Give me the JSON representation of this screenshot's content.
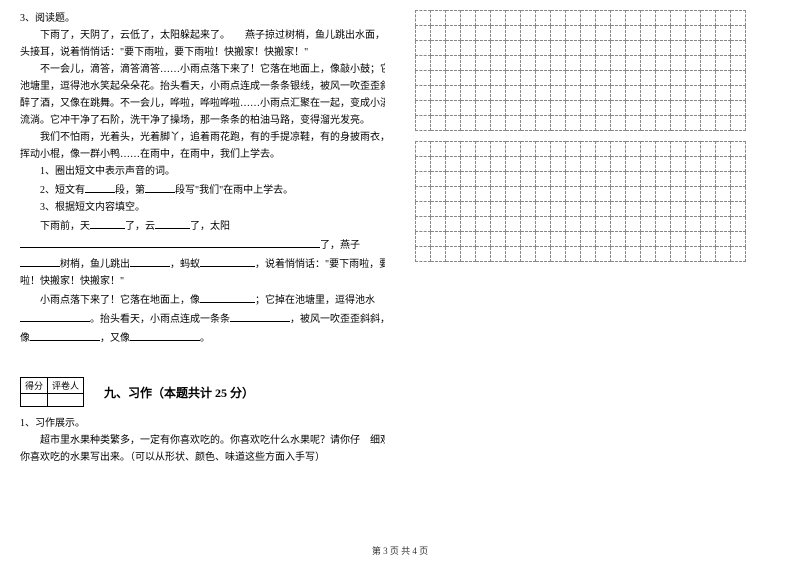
{
  "q3": {
    "title": "3、阅读题。",
    "p1": "下雨了，天阴了，云低了，太阳躲起来了。　　燕子掠过树梢，鱼儿跳出水面，蚂蚁交",
    "p1b": "头接耳，说着悄悄话：\"要下雨啦，要下雨啦！快搬家！快搬家！\"",
    "p2": "不一会儿，滴答，滴答滴答……小雨点落下来了！它落在地面上，像敲小鼓；它掉在",
    "p2b": "池塘里，逗得池水笑起朵朵花。抬头看天，小雨点连成一条条银线，被风一吹歪歪斜斜，像喝",
    "p2c": "醉了酒，又像在跳舞。不一会儿，哗啦，哗啦哗啦……小雨点汇聚在一起，变成小溪，在地上",
    "p2d": "流淌。它冲干净了石阶，洗干净了操场，那一条条的柏油马路，变得溜光发亮。",
    "p3": "我们不怕雨，光着头，光着脚丫，追着雨花跑，有的手提凉鞋，有的身披雨衣，有的",
    "p3b": "挥动小棍，像一群小鸭……在雨中，在雨中，我们上学去。",
    "sub1": "1、圈出短文中表示声音的词。",
    "sub2_a": "2、短文有",
    "sub2_b": "段，第",
    "sub2_c": "段写\"我们\"在雨中上学去。",
    "sub3": "3、根据短文内容填空。",
    "fill1_a": "下雨前，天",
    "fill1_b": "了，云",
    "fill1_c": "了，太阳",
    "fill2_a": "了，燕子",
    "fill3_a": "树梢，鱼儿跳出",
    "fill3_b": "，蚂蚁",
    "fill3_c": "，说着悄悄话：\"要下雨啦，要下雨",
    "fill4": "啦！快搬家！快搬家！\"",
    "fill5_a": "小雨点落下来了！它落在地面上，像",
    "fill5_b": "；它掉在池塘里，逗得池水",
    "fill6_a": "。抬头看天，小雨点连成一条条",
    "fill6_b": "，被风一吹歪歪斜斜，",
    "fill7_a": "像",
    "fill7_b": "，又像",
    "fill7_c": "。"
  },
  "score": {
    "c1": "得分",
    "c2": "评卷人"
  },
  "section9": {
    "title": "九、习作（本题共计 25 分）",
    "q1": "1、习作展示。",
    "body_a": "超市里水果种类繁多，一定有你喜欢吃的。你喜欢吃什么水果呢？请你仔　细观察，把",
    "body_b": "你喜欢吃的水果写出来。（可以从形状、颜色、味道这些方面入手写）"
  },
  "footer": "第 3 页 共 4 页",
  "grid": {
    "rows": 8,
    "cols": 22
  }
}
